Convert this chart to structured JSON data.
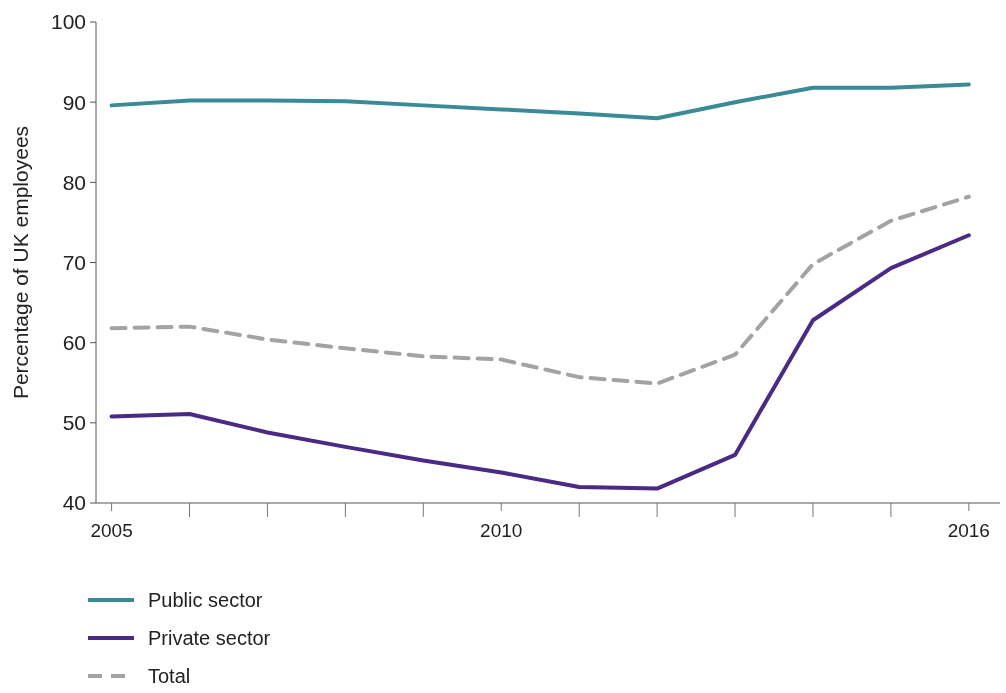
{
  "chart_data": {
    "type": "line",
    "ylabel": "Percentage of UK employees",
    "x": [
      2005,
      2006,
      2007,
      2008,
      2009,
      2010,
      2011,
      2012,
      2013,
      2014,
      2015,
      2016
    ],
    "xlim": [
      2004.8,
      2016.4
    ],
    "xticks": [
      2005,
      {
        "value": 2006,
        "label": null
      },
      {
        "value": 2007,
        "label": null
      },
      {
        "value": 2008,
        "label": null
      },
      {
        "value": 2009,
        "label": null
      },
      2010,
      {
        "value": 2011,
        "label": null
      },
      {
        "value": 2012,
        "label": null
      },
      {
        "value": 2013,
        "label": null
      },
      {
        "value": 2014,
        "label": null
      },
      {
        "value": 2015,
        "label": null
      },
      2016
    ],
    "ylim": [
      40,
      100
    ],
    "yticks": [
      40,
      50,
      60,
      70,
      80,
      90,
      100
    ],
    "grid": false,
    "legend": "bottom left",
    "series": [
      {
        "name": "Public sector",
        "color": "#3b8a97",
        "values": [
          89.6,
          90.2,
          90.2,
          90.1,
          89.6,
          89.1,
          88.6,
          88.0,
          90.0,
          91.8,
          91.8,
          92.2
        ]
      },
      {
        "name": "Private sector",
        "color": "#4b2a85",
        "values": [
          50.8,
          51.1,
          48.8,
          47.0,
          45.3,
          43.8,
          42.0,
          41.8,
          46.0,
          62.8,
          69.3,
          73.4
        ]
      },
      {
        "name": "Total",
        "color": "#a3a3a3",
        "line_style": "dashed",
        "values": [
          61.8,
          62.0,
          60.4,
          59.3,
          58.3,
          57.9,
          55.7,
          54.9,
          58.5,
          69.8,
          75.2,
          78.2
        ]
      }
    ]
  }
}
